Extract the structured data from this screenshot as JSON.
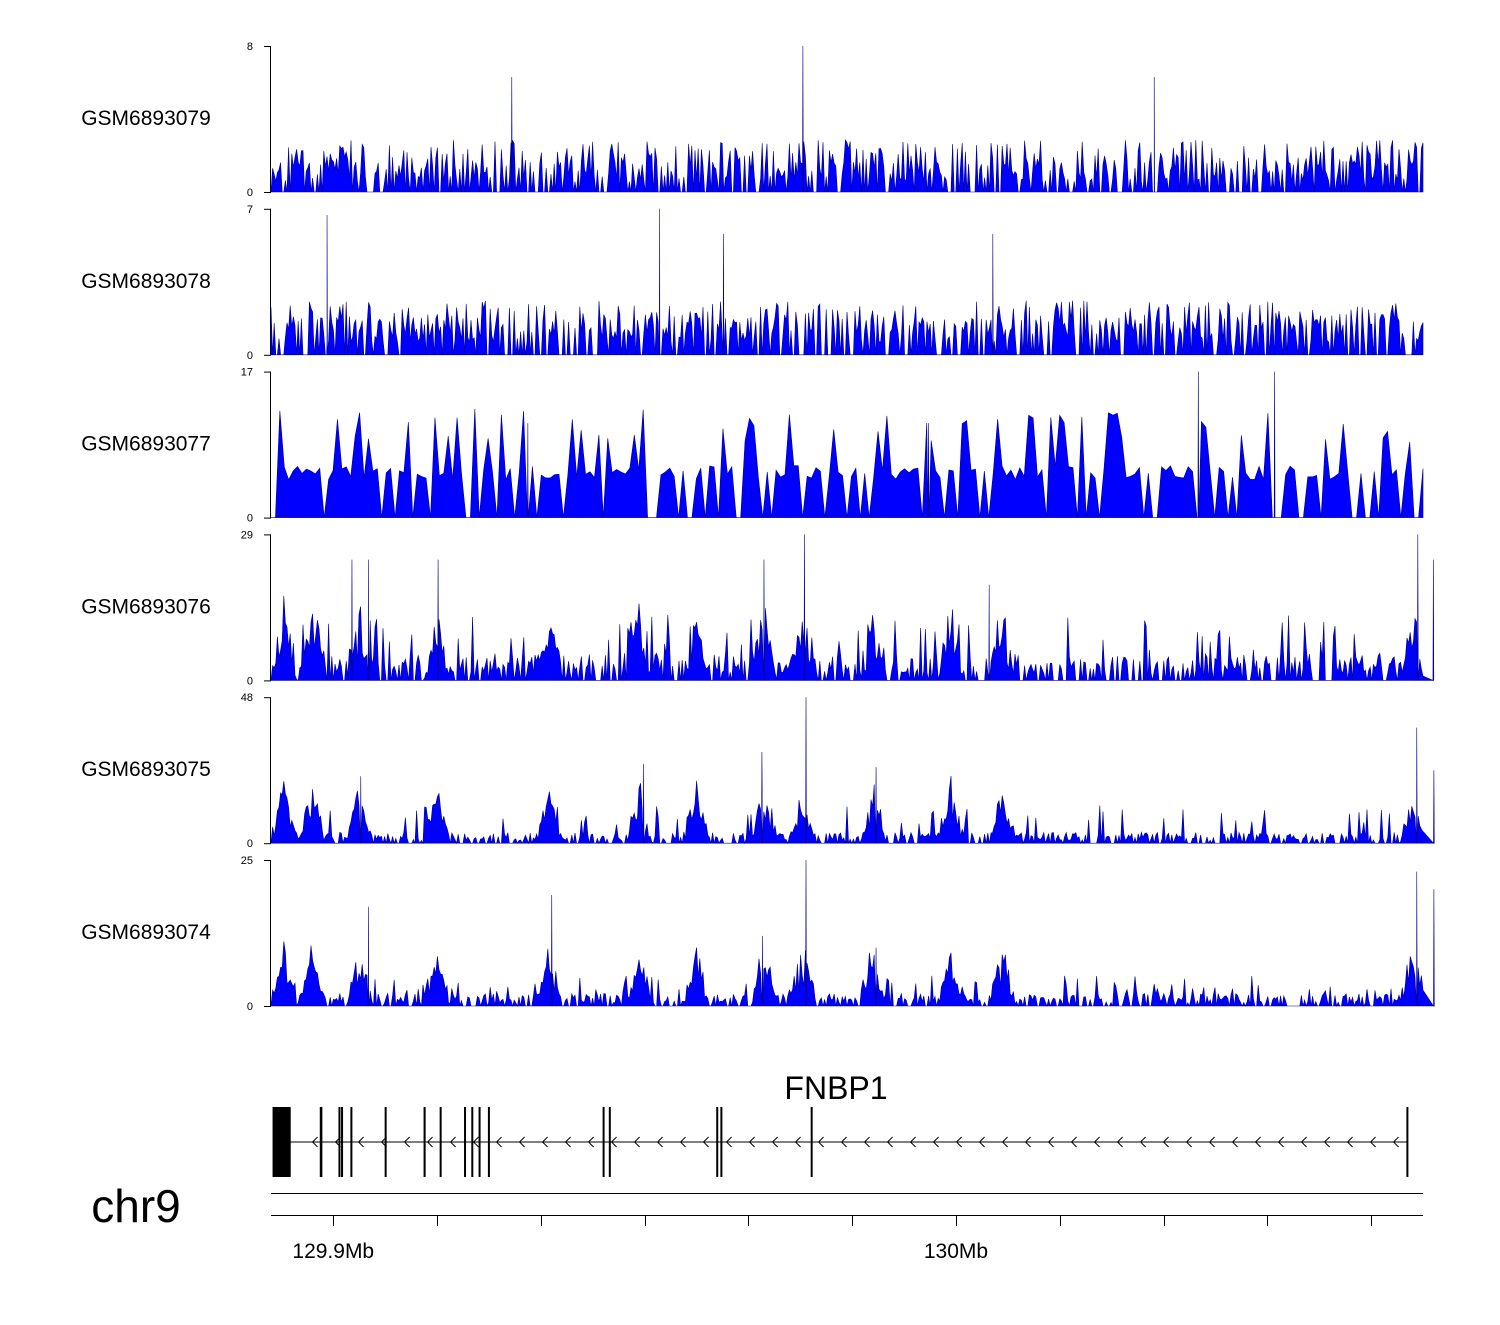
{
  "chart_data": {
    "type": "area",
    "color": "#0000ff",
    "stroke_color": "#00008b",
    "chromosome": "chr9",
    "region_mb": [
      129.868,
      130.09
    ],
    "tracks": [
      {
        "name": "GSM6893079",
        "ymax_label": "8",
        "ymin_label": "0",
        "ylim": [
          0,
          8
        ],
        "peaks": [
          [
            129.9144,
            6.3
          ],
          [
            129.9705,
            8.0
          ],
          [
            130.0382,
            6.3
          ]
        ],
        "profile": "uniform",
        "base": 1.1,
        "spike": 2.2,
        "spike_prob": 0.28
      },
      {
        "name": "GSM6893078",
        "ymax_label": "7",
        "ymin_label": "0",
        "ylim": [
          0,
          7
        ],
        "peaks": [
          [
            129.8788,
            6.7
          ],
          [
            129.9429,
            7.0
          ],
          [
            129.9552,
            5.8
          ],
          [
            130.0071,
            5.8
          ]
        ],
        "profile": "uniform",
        "base": 1.2,
        "spike": 2.0,
        "spike_prob": 0.3
      },
      {
        "name": "GSM6893077",
        "ymax_label": "17",
        "ymin_label": "0",
        "ylim": [
          0,
          17
        ],
        "peaks": [
          [
            130.0467,
            17.0
          ],
          [
            130.0614,
            17.0
          ],
          [
            129.9947,
            11.0
          ],
          [
            129.9175,
            11.0
          ]
        ],
        "profile": "sparse",
        "base": 5.5,
        "spike": 11.0,
        "spike_prob": 0.18
      },
      {
        "name": "GSM6893076",
        "ymax_label": "29",
        "ymin_label": "0",
        "ylim": [
          0,
          29
        ],
        "peaks": [
          [
            129.8836,
            24.0
          ],
          [
            129.8868,
            24.0
          ],
          [
            129.9002,
            24.0
          ],
          [
            129.9708,
            29.0
          ],
          [
            129.963,
            24.0
          ],
          [
            130.0064,
            19.0
          ],
          [
            130.089,
            29.0
          ],
          [
            130.092,
            24.0
          ]
        ],
        "profile": "clustered",
        "base": 4.5,
        "spike": 10.0,
        "spike_prob": 0.2
      },
      {
        "name": "GSM6893075",
        "ymax_label": "48",
        "ymin_label": "0",
        "ylim": [
          0,
          48
        ],
        "peaks": [
          [
            129.8853,
            22.0
          ],
          [
            129.9711,
            48.0
          ],
          [
            129.9626,
            30.0
          ],
          [
            129.9398,
            26.0
          ],
          [
            129.9846,
            25.0
          ],
          [
            130.0888,
            38.0
          ],
          [
            130.0921,
            24.0
          ]
        ],
        "profile": "clustered",
        "base": 3.0,
        "spike": 10.0,
        "spike_prob": 0.15
      },
      {
        "name": "GSM6893074",
        "ymax_label": "25",
        "ymin_label": "0",
        "ylim": [
          0,
          25
        ],
        "peaks": [
          [
            129.8868,
            17.0
          ],
          [
            129.9221,
            19.0
          ],
          [
            129.9711,
            25.0
          ],
          [
            129.9627,
            12.0
          ],
          [
            129.9846,
            10.0
          ],
          [
            130.0888,
            23.0
          ],
          [
            130.0921,
            20.0
          ]
        ],
        "profile": "clustered",
        "base": 1.8,
        "spike": 4.0,
        "spike_prob": 0.2
      }
    ],
    "gene": {
      "name": "FNBP1",
      "strand": "-",
      "start": 129.8683,
      "end": 130.0871,
      "exons": [
        [
          129.8683,
          129.8718
        ],
        [
          129.8774,
          129.8779
        ],
        [
          129.881,
          129.8813
        ],
        [
          129.8815,
          129.8818
        ],
        [
          129.8833,
          129.8835
        ],
        [
          129.8899,
          129.8901
        ],
        [
          129.8974,
          129.8978
        ],
        [
          129.9005,
          129.9007
        ],
        [
          129.9052,
          129.9055
        ],
        [
          129.9066,
          129.9069
        ],
        [
          129.908,
          129.9082
        ],
        [
          129.9098,
          129.91
        ],
        [
          129.9319,
          129.9321
        ],
        [
          129.9331,
          129.9333
        ],
        [
          129.9538,
          129.9541
        ],
        [
          129.9546,
          129.9549
        ],
        [
          129.972,
          129.9722
        ],
        [
          130.0868,
          130.0871
        ]
      ]
    },
    "x_axis": {
      "ticks_mb": [
        129.88,
        129.9,
        129.92,
        129.94,
        129.96,
        129.98,
        130.0,
        130.02,
        130.04,
        130.06,
        130.08
      ],
      "labels": [
        {
          "value": 129.88,
          "text": "129.9Mb"
        },
        {
          "value": 130.0,
          "text": "130Mb"
        }
      ]
    }
  }
}
